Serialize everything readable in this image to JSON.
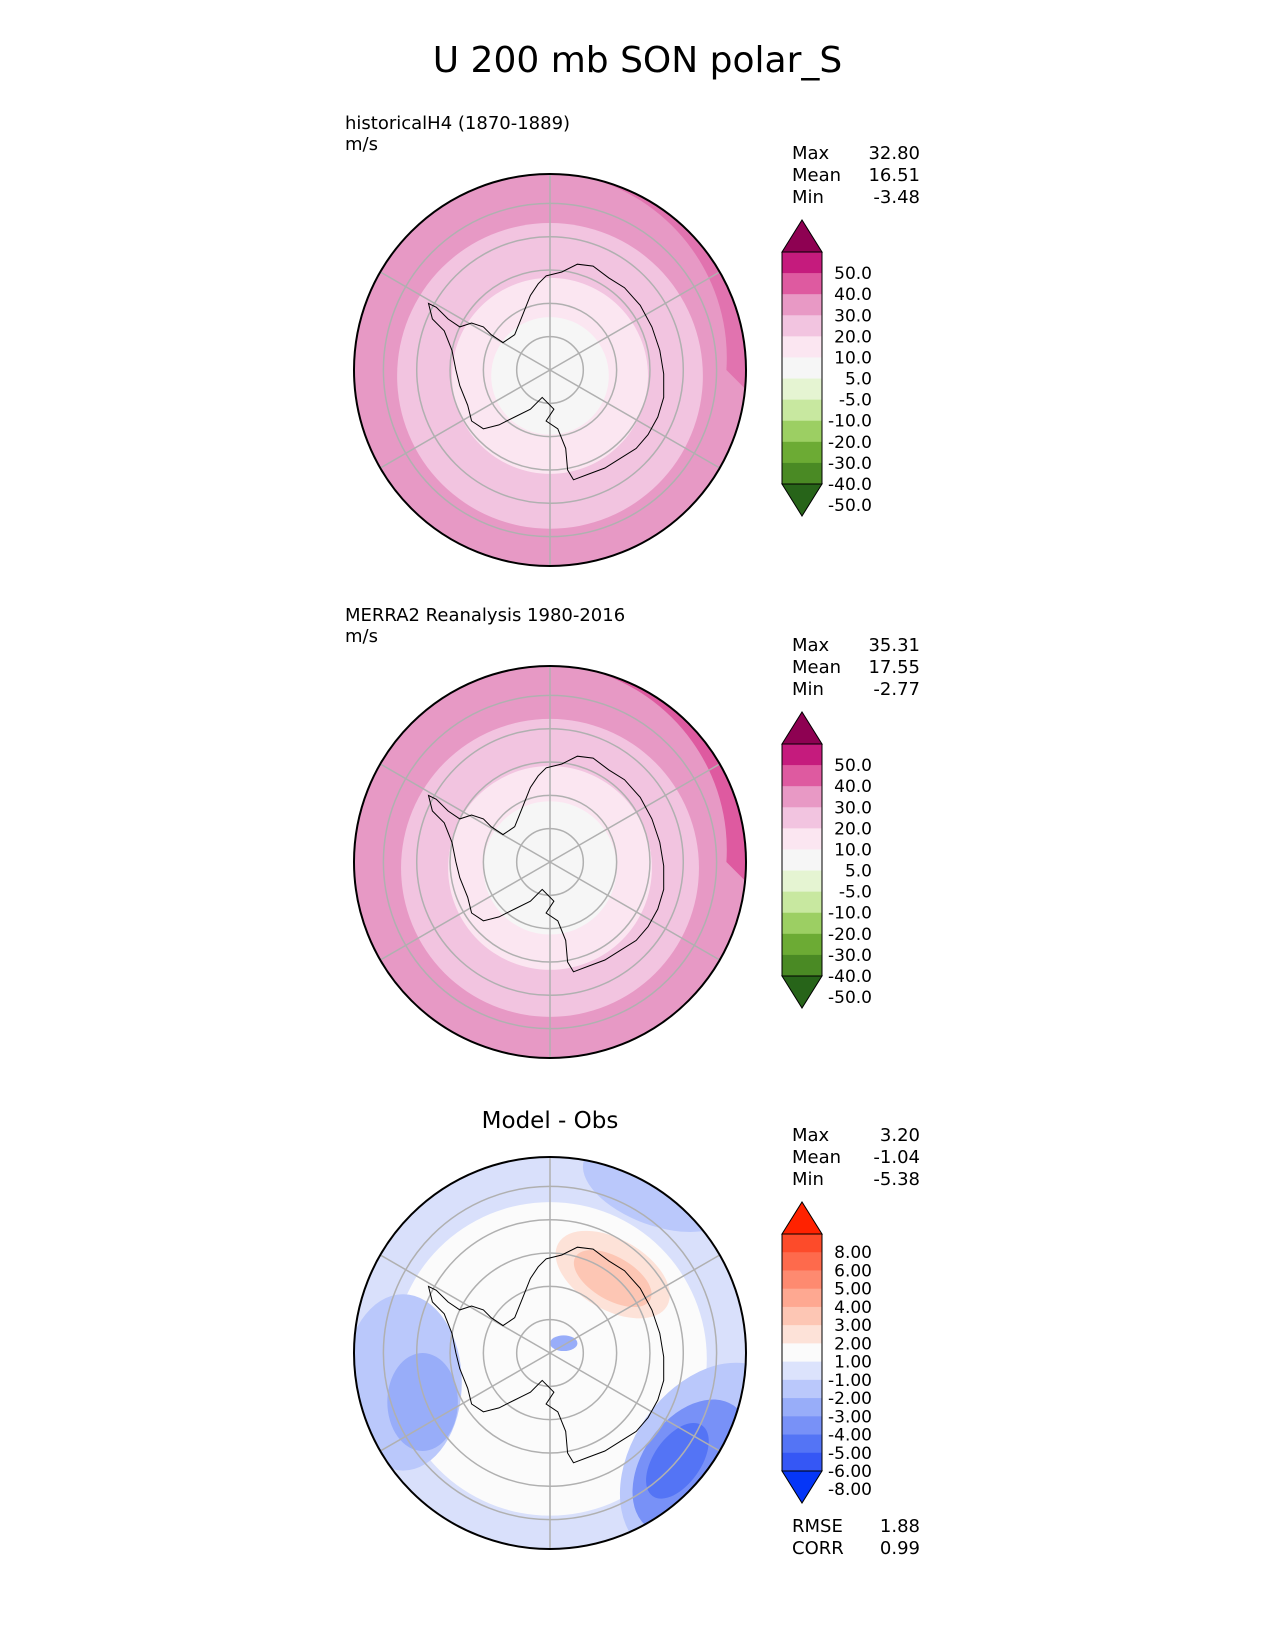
{
  "title": "U 200 mb SON polar_S",
  "colors": {
    "map_outline": "#000000",
    "grid": "#b0b0b0",
    "coast": "#000000"
  },
  "panels": [
    {
      "id": "model",
      "label_line1": "historicalH4 (1870-1889)",
      "label_line2": "m/s",
      "center_title": "",
      "stats": [
        {
          "name": "Max",
          "value": "32.80"
        },
        {
          "name": "Mean",
          "value": "16.51"
        },
        {
          "name": "Min",
          "value": "-3.48"
        }
      ],
      "colorbar": {
        "ticks": [
          "50.0",
          "40.0",
          "30.0",
          "20.0",
          "10.0",
          "5.0",
          "-5.0",
          "-10.0",
          "-20.0",
          "-30.0",
          "-40.0",
          "-50.0"
        ],
        "colors": [
          "#8e0152",
          "#c51b7d",
          "#de5aa0",
          "#e899c5",
          "#f2c4e0",
          "#fbe6f1",
          "#f6f6f6",
          "#e5f4d2",
          "#c8e8a0",
          "#9ccf63",
          "#6cab34",
          "#4a8a24",
          "#276419"
        ]
      },
      "rings": [
        {
          "r": 1.0,
          "color": "#e799c5"
        },
        {
          "r": 0.78,
          "color": "#f2c4e0"
        },
        {
          "r": 0.5,
          "color": "#fbe6f1"
        },
        {
          "r": 0.3,
          "color": "#f6f6f6"
        }
      ],
      "edge_band": {
        "color": "#de5aa0"
      }
    },
    {
      "id": "obs",
      "label_line1": "MERRA2 Reanalysis 1980-2016",
      "label_line2": "m/s",
      "center_title": "",
      "stats": [
        {
          "name": "Max",
          "value": "35.31"
        },
        {
          "name": "Mean",
          "value": "17.55"
        },
        {
          "name": "Min",
          "value": "-2.77"
        }
      ],
      "colorbar": {
        "ticks": [
          "50.0",
          "40.0",
          "30.0",
          "20.0",
          "10.0",
          "5.0",
          "-5.0",
          "-10.0",
          "-20.0",
          "-30.0",
          "-40.0",
          "-50.0"
        ],
        "colors": [
          "#8e0152",
          "#c51b7d",
          "#de5aa0",
          "#e899c5",
          "#f2c4e0",
          "#fbe6f1",
          "#f6f6f6",
          "#e5f4d2",
          "#c8e8a0",
          "#9ccf63",
          "#6cab34",
          "#4a8a24",
          "#276419"
        ]
      },
      "rings": [
        {
          "r": 1.0,
          "color": "#e799c5"
        },
        {
          "r": 0.76,
          "color": "#f2c4e0"
        },
        {
          "r": 0.52,
          "color": "#fbe6f1"
        },
        {
          "r": 0.34,
          "color": "#f6f6f6"
        }
      ],
      "edge_band": {
        "color": "#de5aa0"
      }
    },
    {
      "id": "diff",
      "label_line1": "",
      "label_line2": "",
      "center_title": "Model - Obs",
      "stats": [
        {
          "name": "Max",
          "value": "3.20"
        },
        {
          "name": "Mean",
          "value": "-1.04"
        },
        {
          "name": "Min",
          "value": "-5.38"
        }
      ],
      "colorbar": {
        "ticks": [
          "8.00",
          "6.00",
          "5.00",
          "4.00",
          "3.00",
          "2.00",
          "1.00",
          "-1.00",
          "-2.00",
          "-3.00",
          "-4.00",
          "-5.00",
          "-6.00",
          "-8.00"
        ],
        "colors": [
          "#ff2200",
          "#fd4b2a",
          "#fe6a4c",
          "#fe8a70",
          "#fea891",
          "#fdc6b4",
          "#fde2d8",
          "#fbfbfb",
          "#dce3fc",
          "#bac8fb",
          "#98adf9",
          "#7891f7",
          "#5474f5",
          "#3557f5",
          "#0536f7"
        ]
      },
      "rings": [
        {
          "r": 1.0,
          "color": "#d9e0fb"
        },
        {
          "r": 0.8,
          "color": "#fbfbfb"
        }
      ],
      "edge_band": {
        "color": "#bac8fb"
      },
      "footer_stats": [
        {
          "name": "RMSE",
          "value": "1.88"
        },
        {
          "name": "CORR",
          "value": "0.99"
        }
      ]
    }
  ]
}
